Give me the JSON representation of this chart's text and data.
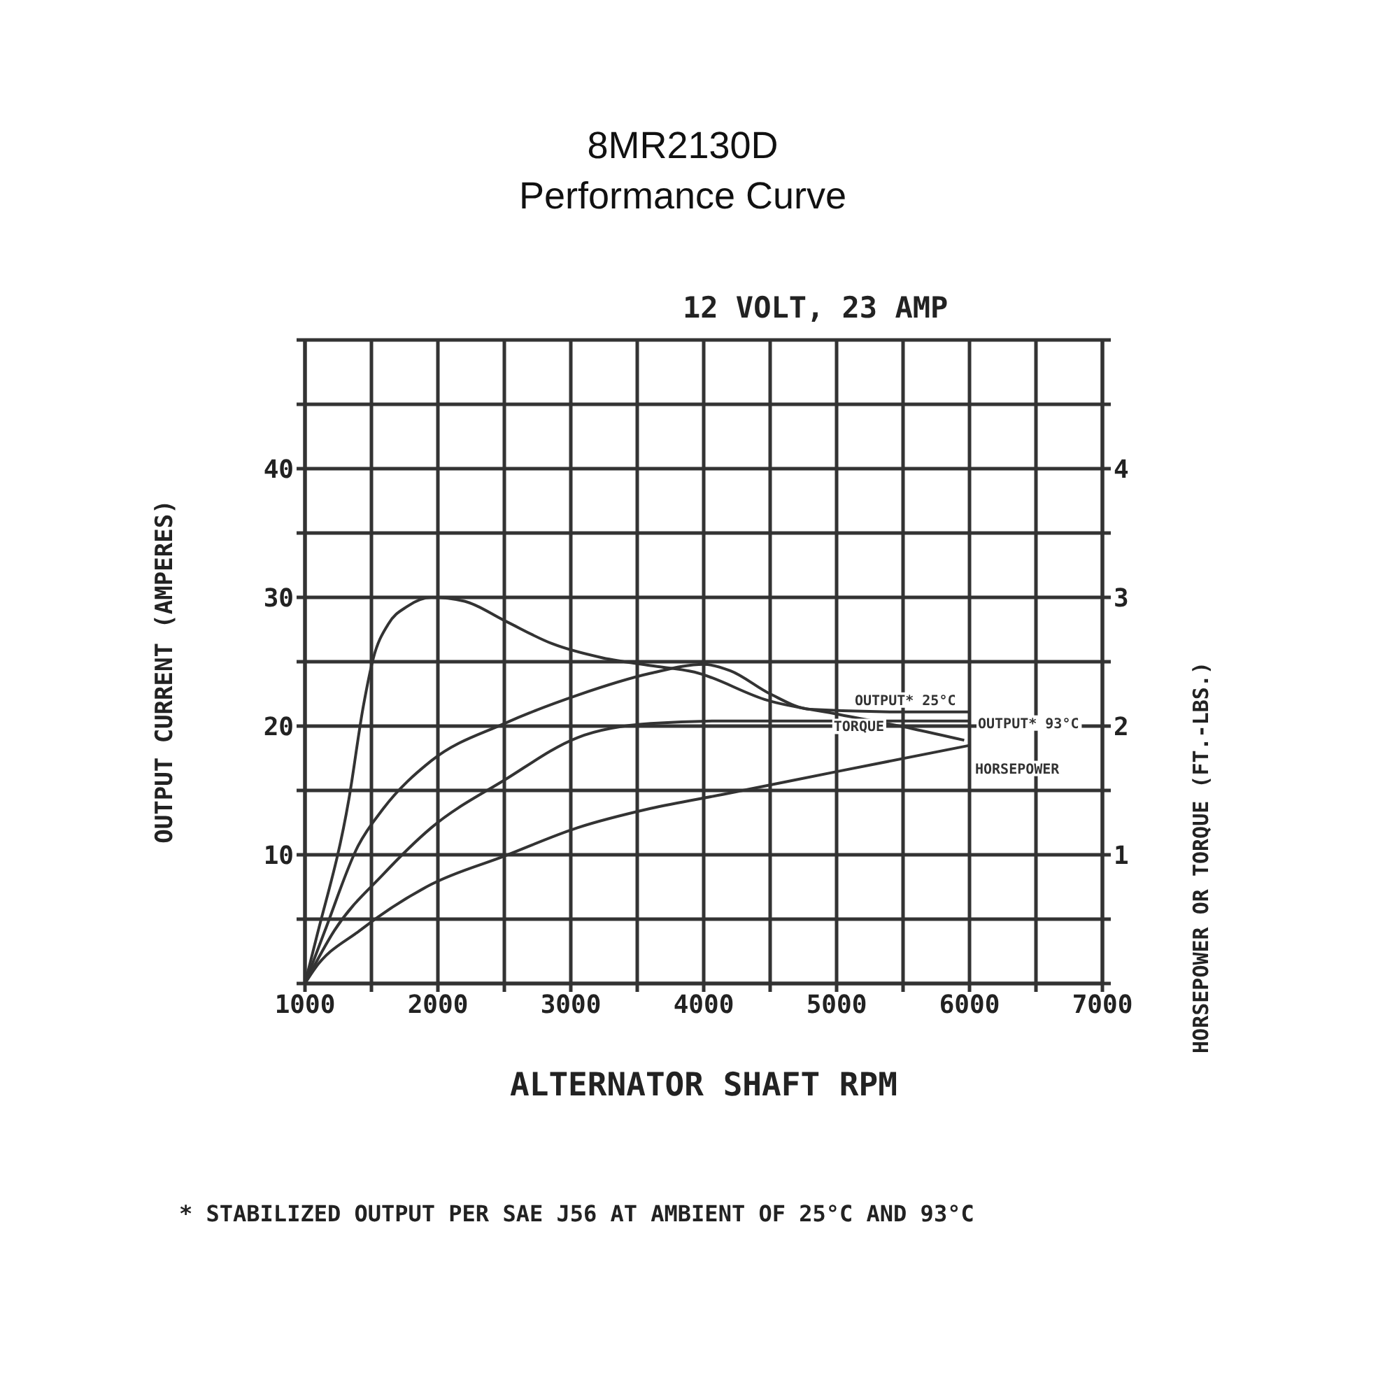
{
  "chart_data": {
    "type": "line",
    "title": "8MR2130D",
    "subtitle": "Performance Curve",
    "xlabel": "ALTERNATOR SHAFT RPM",
    "ylabel": "OUTPUT CURRENT (AMPERES)",
    "y2label": "HORSEPOWER OR TORQUE (FT.-LBS.)",
    "annotations": [
      "12 VOLT, 23 AMP",
      "* STABILIZED OUTPUT PER SAE J56 AT AMBIENT OF 25°C AND 93°C"
    ],
    "xlim": [
      1000,
      7000
    ],
    "xticks": [
      1000,
      {
        "value": 1500,
        "label": null
      },
      2000,
      {
        "value": 2500,
        "label": null
      },
      3000,
      {
        "value": 3500,
        "label": null
      },
      4000,
      {
        "value": 4500,
        "label": null
      },
      5000,
      {
        "value": 5500,
        "label": null
      },
      6000,
      {
        "value": 6500,
        "label": null
      },
      7000
    ],
    "ylim": [
      0,
      50
    ],
    "yticks": [
      {
        "value": 0,
        "label": null
      },
      {
        "value": 5,
        "label": null
      },
      10,
      {
        "value": 15,
        "label": null
      },
      20,
      {
        "value": 25,
        "label": null
      },
      30,
      {
        "value": 35,
        "label": null
      },
      40,
      {
        "value": 45,
        "label": null
      },
      {
        "value": 50,
        "label": null
      }
    ],
    "y2lim": [
      0,
      5
    ],
    "y2ticks": [
      {
        "value": 0,
        "label": null
      },
      {
        "value": 0.5,
        "label": null
      },
      1,
      {
        "value": 1.5,
        "label": null
      },
      2,
      {
        "value": 2.5,
        "label": null
      },
      3,
      {
        "value": 3.5,
        "label": null
      },
      4,
      {
        "value": 4.5,
        "label": null
      },
      {
        "value": 5,
        "label": null
      }
    ],
    "grid": true,
    "marker": "none",
    "series": [
      {
        "name": "OUTPUT* 25°C",
        "color": "#333333",
        "x": [
          1000,
          1150,
          1400,
          1590,
          1950,
          2500,
          3050,
          3600,
          4000,
          4200,
          4500,
          4800,
          5500,
          6000
        ],
        "values": [
          0,
          4.1,
          10.7,
          13.6,
          17.3,
          20.2,
          22.4,
          24.1,
          24.8,
          24.3,
          22.5,
          21.3,
          21.1,
          21.1
        ]
      },
      {
        "name": "OUTPUT* 93°C",
        "color": "#333333",
        "x": [
          1000,
          1220,
          1590,
          1950,
          2500,
          3050,
          3600,
          4200,
          5000,
          6000
        ],
        "values": [
          0,
          4.1,
          8.5,
          12.1,
          15.8,
          19.1,
          20.2,
          20.4,
          20.4,
          20.4
        ]
      },
      {
        "name": "TORQUE",
        "color": "#333333",
        "axis": "y2",
        "x": [
          1000,
          1080,
          1330,
          1440,
          1515,
          1625,
          1770,
          1950,
          2200,
          2500,
          2860,
          3240,
          3600,
          3930,
          4480,
          5020,
          5570,
          5960
        ],
        "values": [
          0,
          0.33,
          1.43,
          2.16,
          2.53,
          2.79,
          2.93,
          3.0,
          2.97,
          2.82,
          2.64,
          2.53,
          2.47,
          2.42,
          2.2,
          2.09,
          1.98,
          1.89
        ]
      },
      {
        "name": "HORSEPOWER",
        "color": "#333333",
        "axis": "y2",
        "x": [
          1000,
          1070,
          1410,
          1950,
          2500,
          3050,
          3600,
          4150,
          5020,
          6000
        ],
        "values": [
          0,
          0.11,
          0.41,
          0.77,
          0.99,
          1.21,
          1.36,
          1.47,
          1.65,
          1.85
        ]
      }
    ]
  }
}
